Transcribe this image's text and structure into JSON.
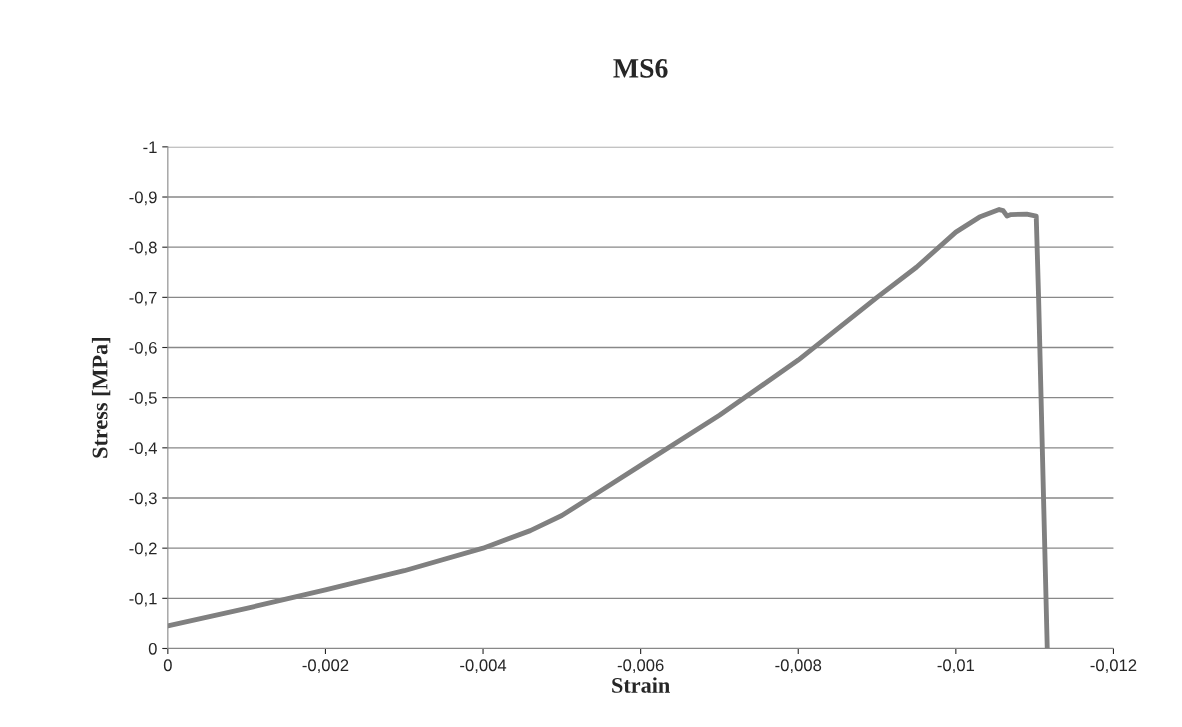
{
  "chart_data": {
    "type": "line",
    "title": "MS6",
    "xlabel": "Strain",
    "ylabel": "Stress [MPa]",
    "x": [
      0,
      -0.001,
      -0.002,
      -0.003,
      -0.004,
      -0.0046,
      -0.005,
      -0.0055,
      -0.006,
      -0.007,
      -0.008,
      -0.009,
      -0.0095,
      -0.01,
      -0.0103,
      -0.01055,
      -0.0106,
      -0.01065,
      -0.0107,
      -0.0109,
      -0.01102,
      -0.01105,
      -0.01116
    ],
    "series": [
      {
        "color": "#808080",
        "values": [
          -0.045,
          -0.08,
          -0.117,
          -0.155,
          -0.2,
          -0.235,
          -0.265,
          -0.315,
          -0.365,
          -0.465,
          -0.575,
          -0.7,
          -0.76,
          -0.83,
          -0.86,
          -0.875,
          -0.873,
          -0.862,
          -0.865,
          -0.866,
          -0.862,
          -0.7,
          0
        ]
      }
    ],
    "xlim": [
      0,
      -0.012
    ],
    "xticks": [
      0,
      {
        "value": -0.002,
        "label": "-0,002"
      },
      {
        "value": -0.004,
        "label": "-0,004"
      },
      {
        "value": -0.006,
        "label": "-0,006"
      },
      {
        "value": -0.008,
        "label": "-0,008"
      },
      {
        "value": -0.01,
        "label": "-0,01"
      },
      {
        "value": -0.012,
        "label": "-0,012"
      }
    ],
    "ylim": [
      0,
      -1
    ],
    "yticks": [
      0,
      {
        "value": -0.1,
        "label": "-0,1"
      },
      {
        "value": -0.2,
        "label": "-0,2"
      },
      {
        "value": -0.3,
        "label": "-0,3"
      },
      {
        "value": -0.4,
        "label": "-0,4"
      },
      {
        "value": -0.5,
        "label": "-0,5"
      },
      {
        "value": -0.6,
        "label": "-0,6"
      },
      {
        "value": -0.7,
        "label": "-0,7"
      },
      {
        "value": -0.8,
        "label": "-0,8"
      },
      {
        "value": -0.9,
        "label": "-0,9"
      },
      -1
    ],
    "grid": "y",
    "legend": false,
    "marker": "none",
    "line_style": "solid"
  }
}
